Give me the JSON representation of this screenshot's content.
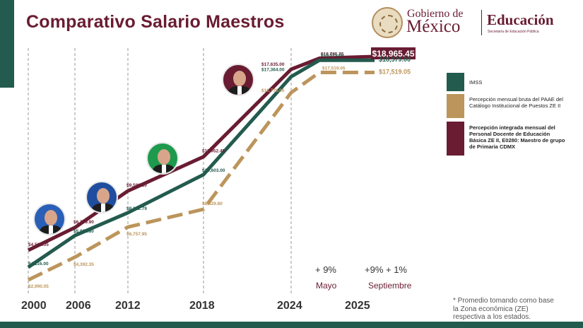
{
  "title": "Comparativo Salario Maestros",
  "header": {
    "gob_line1": "Gobierno de",
    "gob_line2": "México",
    "edu_line1": "Educación",
    "edu_line2": "Secretaría de Educación Pública"
  },
  "colors": {
    "green": "#235b4e",
    "gold": "#bc955c",
    "maroon": "#691c32"
  },
  "chart_data": {
    "type": "line",
    "x": [
      "2000",
      "2006",
      "2012",
      "2018",
      "2024",
      "2025"
    ],
    "series": [
      {
        "name": "Percepción integrada mensual del Personal Docente de Educación Básica ZE II, E0280: Maestro de grupo de Primaria CDMX",
        "color": "#691c32",
        "points": [
          {
            "x": "2000",
            "value": 4582.05,
            "label": "$4,582.05"
          },
          {
            "x": "2006",
            "value": 6709.9,
            "label": "$6,709.90"
          },
          {
            "x": "2012",
            "value": 9580.2,
            "label": "$9,580.20"
          },
          {
            "x": "2018",
            "value": 11952.45,
            "label": "$11,952.45"
          },
          {
            "x": "2024",
            "value": 17635.0,
            "label": "$17,635.00"
          },
          {
            "x": "2025 (Mayo)",
            "value": 18785.75,
            "label": "$18,785.75"
          },
          {
            "x": "2025 (Septiembre)",
            "value": 18965.45,
            "label": "$18,965.45"
          }
        ]
      },
      {
        "name": "IMSS",
        "color": "#235b4e",
        "points": [
          {
            "x": "2000",
            "value": 4116.0,
            "label": "$4,116.00"
          },
          {
            "x": "2006",
            "value": 5962.8,
            "label": "$5,962.80"
          },
          {
            "x": "2012",
            "value": 8102.79,
            "label": "$8,102.79"
          },
          {
            "x": "2018",
            "value": 10603.0,
            "label": "$10,603.00"
          },
          {
            "x": "2024",
            "value": 17364.0,
            "label": "$17,364.00"
          },
          {
            "x": "2025 (Mayo)",
            "value": 18579.0,
            "label": "$18,579.00"
          },
          {
            "x": "2025 (Septiembre)",
            "value": 18579.0,
            "label": "$18,579.00"
          }
        ]
      },
      {
        "name": "Percepción mensual bruta del PAAE del Catálogo Institucional de Puestos ZE II",
        "color": "#bc955c",
        "dashed": true,
        "points": [
          {
            "x": "2000",
            "value": 2990.05,
            "label": "$2,990.05"
          },
          {
            "x": "2006",
            "value": 4392.35,
            "label": "$4,392.35"
          },
          {
            "x": "2012",
            "value": 6757.95,
            "label": "$6,757.95"
          },
          {
            "x": "2018",
            "value": 8429.8,
            "label": "$8,429.80"
          },
          {
            "x": "2024",
            "value": 16778.0,
            "label": "$16,778.00"
          },
          {
            "x": "2025 (Mayo)",
            "value": 17519.05,
            "label": "$17,519.05"
          },
          {
            "x": "2025 (Septiembre)",
            "value": 17519.05,
            "label": "$17,519.05"
          }
        ]
      }
    ],
    "grid": "vertical dashed lines at years",
    "legend_placement": "right"
  },
  "legend": [
    {
      "label": "IMSS",
      "color": "#235b4e",
      "bold": false
    },
    {
      "label": "Percepción mensual bruta del PAAE del Catálogo Institucional de Puestos ZE II",
      "color": "#bc955c",
      "bold": false
    },
    {
      "label": "Percepción integrada mensual del Personal Docente de Educación Básica ZE II, E0280: Maestro de grupo de Primaria CDMX",
      "color": "#691c32",
      "bold": true
    }
  ],
  "changes": [
    {
      "value": "+ 9%",
      "label": "Mayo"
    },
    {
      "value": "+9% + 1%",
      "label": "Septiembre"
    }
  ],
  "footnote": "* Promedio tomando como base la Zona económica (ZE) respectiva a los estados."
}
